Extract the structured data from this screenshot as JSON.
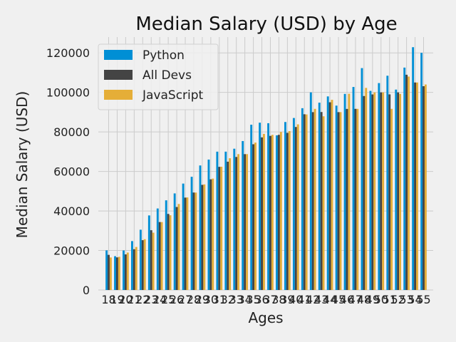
{
  "chart_data": {
    "type": "bar",
    "title": "Median Salary (USD) by Age",
    "xlabel": "Ages",
    "ylabel": "Median Salary (USD)",
    "ylim": [
      0,
      128000
    ],
    "yticks": [
      0,
      20000,
      40000,
      60000,
      80000,
      100000,
      120000
    ],
    "grid": true,
    "legend_position": "top-left",
    "categories": [
      "18",
      "19",
      "20",
      "21",
      "22",
      "23",
      "24",
      "25",
      "26",
      "27",
      "28",
      "29",
      "30",
      "31",
      "32",
      "33",
      "34",
      "35",
      "36",
      "37",
      "38",
      "39",
      "40",
      "41",
      "42",
      "43",
      "44",
      "45",
      "46",
      "47",
      "48",
      "49",
      "50",
      "51",
      "52",
      "53",
      "54",
      "55"
    ],
    "series": [
      {
        "name": "Python",
        "color": "#008fd5",
        "values": [
          20046,
          17100,
          20000,
          24744,
          30500,
          37732,
          41247,
          45372,
          48876,
          53850,
          57287,
          63016,
          65998,
          70003,
          70000,
          71496,
          75370,
          83640,
          84666,
          84392,
          78254,
          85000,
          87038,
          91991,
          100000,
          94796,
          97962,
          93302,
          99240,
          102736,
          112285,
          100771,
          104708,
          108423,
          101407,
          112542,
          122870,
          120000
        ]
      },
      {
        "name": "All Devs",
        "color": "#444444",
        "values": [
          17784,
          16500,
          18012,
          20628,
          25206,
          30252,
          34368,
          38496,
          42000,
          46752,
          49320,
          53200,
          56000,
          62316,
          64928,
          67317,
          68748,
          73752,
          77232,
          78000,
          78508,
          79536,
          82488,
          88935,
          90000,
          90056,
          95000,
          90000,
          91633,
          91660,
          98150,
          98964,
          100000,
          98988,
          100000,
          108923,
          105000,
          103117
        ]
      },
      {
        "name": "JavaScript",
        "color": "#e5ae38",
        "values": [
          16446,
          16791,
          18942,
          21780,
          25704,
          29000,
          34372,
          37810,
          43515,
          46823,
          49293,
          53437,
          56373,
          62375,
          66674,
          68745,
          68746,
          74583,
          79000,
          78508,
          79996,
          80403,
          83820,
          88833,
          91660,
          87892,
          96243,
          90000,
          99313,
          91660,
          102264,
          100000,
          100000,
          91660,
          99240,
          108000,
          105000,
          104000
        ]
      }
    ]
  }
}
